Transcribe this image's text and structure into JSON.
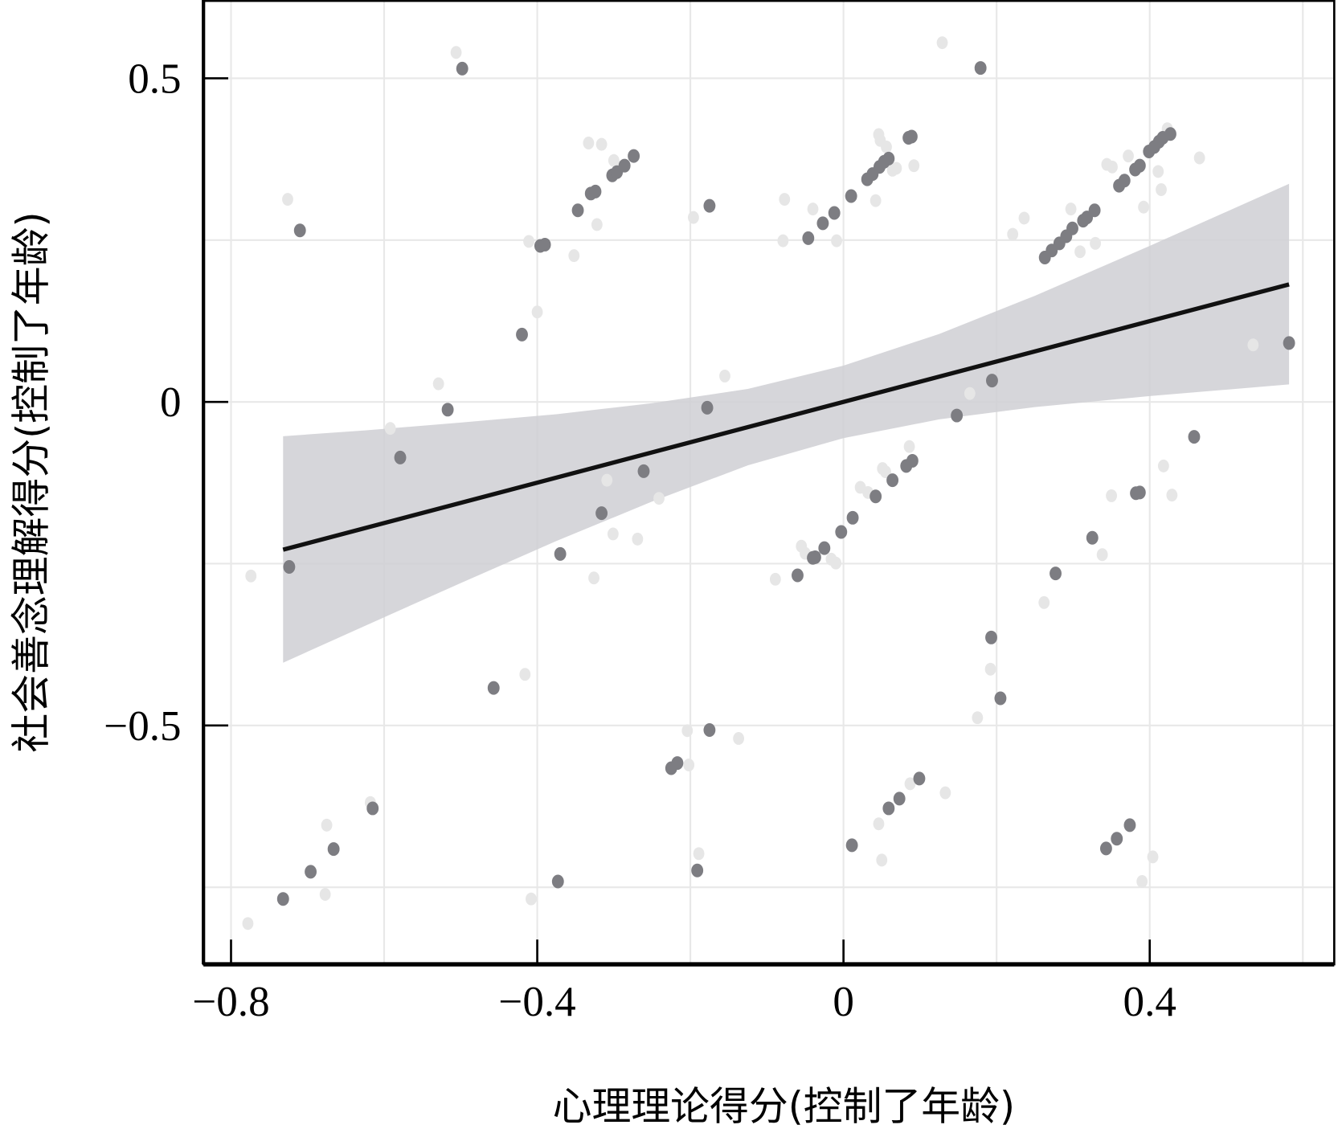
{
  "chart_data": {
    "type": "scatter",
    "title": "",
    "xlabel": "心理理论得分(控制了年龄)",
    "ylabel": "社会善念理解得分(控制了年龄)",
    "xlim": [
      -0.836,
      0.641
    ],
    "ylim": [
      -0.869,
      0.621
    ],
    "grid": true,
    "x_ticks": [
      -0.8,
      -0.4,
      0,
      0.4
    ],
    "x_tick_labels": [
      "−0.8",
      "−0.4",
      "0",
      "0.4"
    ],
    "y_ticks": [
      0.5,
      0,
      -0.5
    ],
    "y_tick_labels": [
      "0.5",
      "0",
      "−0.5"
    ],
    "x_minor_grid": [
      -0.6,
      -0.2,
      0.2,
      0.6
    ],
    "y_minor_grid": [
      0.25,
      -0.25,
      -0.75
    ],
    "colors": {
      "point": "#7d7d82",
      "point_faint": "#e6e6e6",
      "line": "#111111",
      "band": "#cfcfd3",
      "grid": "#e8e8e8"
    },
    "regression": {
      "slope": 0.312,
      "intercept": 0.0,
      "x_range": [
        -0.732,
        0.582
      ]
    },
    "confidence_band": [
      {
        "x": -0.732,
        "lower": -0.403,
        "upper": -0.053
      },
      {
        "x": -0.625,
        "lower": -0.346,
        "upper": -0.044
      },
      {
        "x": -0.5,
        "lower": -0.28,
        "upper": -0.032
      },
      {
        "x": -0.375,
        "lower": -0.215,
        "upper": -0.019
      },
      {
        "x": -0.25,
        "lower": -0.154,
        "upper": -0.002
      },
      {
        "x": -0.125,
        "lower": -0.098,
        "upper": 0.02
      },
      {
        "x": 0,
        "lower": -0.056,
        "upper": 0.056
      },
      {
        "x": 0.125,
        "lower": -0.027,
        "upper": 0.105
      },
      {
        "x": 0.25,
        "lower": -0.008,
        "upper": 0.164
      },
      {
        "x": 0.4,
        "lower": 0.009,
        "upper": 0.241
      },
      {
        "x": 0.582,
        "lower": 0.027,
        "upper": 0.337
      }
    ],
    "points": [
      [
        -0.498,
        0.515
      ],
      [
        -0.71,
        0.265
      ],
      [
        0.179,
        0.516
      ],
      [
        -0.175,
        0.303
      ],
      [
        -0.347,
        0.296
      ],
      [
        -0.33,
        0.322
      ],
      [
        -0.324,
        0.325
      ],
      [
        -0.302,
        0.35
      ],
      [
        -0.296,
        0.355
      ],
      [
        -0.286,
        0.365
      ],
      [
        -0.274,
        0.38
      ],
      [
        -0.396,
        0.241
      ],
      [
        -0.39,
        0.243
      ],
      [
        -0.42,
        0.104
      ],
      [
        -0.517,
        -0.012
      ],
      [
        -0.579,
        -0.086
      ],
      [
        -0.724,
        -0.255
      ],
      [
        -0.261,
        -0.107
      ],
      [
        -0.316,
        -0.172
      ],
      [
        -0.37,
        -0.235
      ],
      [
        -0.178,
        -0.009
      ],
      [
        -0.457,
        -0.442
      ],
      [
        -0.615,
        -0.628
      ],
      [
        -0.666,
        -0.691
      ],
      [
        -0.696,
        -0.726
      ],
      [
        -0.732,
        -0.768
      ],
      [
        -0.373,
        -0.741
      ],
      [
        -0.191,
        -0.724
      ],
      [
        -0.225,
        -0.566
      ],
      [
        -0.217,
        -0.558
      ],
      [
        -0.175,
        -0.507
      ],
      [
        -0.046,
        0.253
      ],
      [
        -0.027,
        0.276
      ],
      [
        -0.012,
        0.292
      ],
      [
        0.01,
        0.318
      ],
      [
        0.031,
        0.344
      ],
      [
        0.038,
        0.352
      ],
      [
        0.047,
        0.363
      ],
      [
        0.053,
        0.371
      ],
      [
        0.059,
        0.376
      ],
      [
        0.085,
        0.408
      ],
      [
        0.089,
        0.41
      ],
      [
        0.194,
        0.033
      ],
      [
        0.148,
        -0.021
      ],
      [
        0.458,
        -0.054
      ],
      [
        0.382,
        -0.141
      ],
      [
        0.387,
        -0.14
      ],
      [
        0.325,
        -0.21
      ],
      [
        0.277,
        -0.265
      ],
      [
        0.582,
        0.091
      ],
      [
        0.193,
        -0.364
      ],
      [
        0.205,
        -0.458
      ],
      [
        -0.06,
        -0.268
      ],
      [
        -0.04,
        -0.241
      ],
      [
        -0.037,
        -0.24
      ],
      [
        -0.025,
        -0.226
      ],
      [
        -0.003,
        -0.201
      ],
      [
        0.012,
        -0.179
      ],
      [
        0.042,
        -0.146
      ],
      [
        0.064,
        -0.121
      ],
      [
        0.082,
        -0.099
      ],
      [
        0.09,
        -0.091
      ],
      [
        0.011,
        -0.685
      ],
      [
        0.059,
        -0.628
      ],
      [
        0.073,
        -0.613
      ],
      [
        0.099,
        -0.582
      ],
      [
        0.343,
        -0.69
      ],
      [
        0.357,
        -0.675
      ],
      [
        0.374,
        -0.654
      ],
      [
        0.263,
        0.223
      ],
      [
        0.272,
        0.234
      ],
      [
        0.282,
        0.245
      ],
      [
        0.291,
        0.256
      ],
      [
        0.299,
        0.268
      ],
      [
        0.313,
        0.28
      ],
      [
        0.318,
        0.285
      ],
      [
        0.328,
        0.296
      ],
      [
        0.36,
        0.334
      ],
      [
        0.367,
        0.342
      ],
      [
        0.381,
        0.359
      ],
      [
        0.387,
        0.365
      ],
      [
        0.399,
        0.387
      ],
      [
        0.406,
        0.394
      ],
      [
        0.412,
        0.402
      ],
      [
        0.417,
        0.408
      ],
      [
        0.427,
        0.414
      ]
    ],
    "points_faint": [
      [
        -0.506,
        0.54
      ],
      [
        -0.726,
        0.313
      ],
      [
        0.129,
        0.555
      ],
      [
        -0.333,
        0.4
      ],
      [
        -0.316,
        0.398
      ],
      [
        -0.3,
        0.373
      ],
      [
        -0.293,
        0.363
      ],
      [
        -0.322,
        0.274
      ],
      [
        -0.352,
        0.226
      ],
      [
        -0.411,
        0.248
      ],
      [
        -0.4,
        0.139
      ],
      [
        -0.196,
        0.285
      ],
      [
        -0.077,
        0.313
      ],
      [
        -0.04,
        0.298
      ],
      [
        -0.079,
        0.249
      ],
      [
        -0.009,
        0.249
      ],
      [
        0.046,
        0.413
      ],
      [
        0.048,
        0.404
      ],
      [
        0.056,
        0.394
      ],
      [
        0.064,
        0.358
      ],
      [
        0.069,
        0.361
      ],
      [
        0.092,
        0.365
      ],
      [
        0.042,
        0.311
      ],
      [
        0.236,
        0.284
      ],
      [
        0.221,
        0.259
      ],
      [
        0.297,
        0.298
      ],
      [
        0.344,
        0.367
      ],
      [
        0.351,
        0.363
      ],
      [
        0.372,
        0.38
      ],
      [
        0.392,
        0.301
      ],
      [
        0.411,
        0.356
      ],
      [
        0.415,
        0.328
      ],
      [
        0.423,
        0.422
      ],
      [
        0.465,
        0.377
      ],
      [
        0.309,
        0.232
      ],
      [
        0.329,
        0.245
      ],
      [
        0.535,
        0.088
      ],
      [
        -0.155,
        0.04
      ],
      [
        0.165,
        0.013
      ],
      [
        -0.529,
        0.028
      ],
      [
        -0.592,
        -0.041
      ],
      [
        -0.309,
        -0.121
      ],
      [
        -0.241,
        -0.149
      ],
      [
        -0.301,
        -0.204
      ],
      [
        -0.269,
        -0.212
      ],
      [
        -0.326,
        -0.272
      ],
      [
        -0.774,
        -0.269
      ],
      [
        -0.089,
        -0.274
      ],
      [
        -0.055,
        -0.223
      ],
      [
        -0.05,
        -0.234
      ],
      [
        -0.016,
        -0.243
      ],
      [
        -0.01,
        -0.249
      ],
      [
        0.022,
        -0.132
      ],
      [
        0.032,
        -0.14
      ],
      [
        0.051,
        -0.103
      ],
      [
        0.055,
        -0.108
      ],
      [
        0.086,
        -0.069
      ],
      [
        0.418,
        -0.099
      ],
      [
        0.429,
        -0.144
      ],
      [
        0.35,
        -0.145
      ],
      [
        0.338,
        -0.236
      ],
      [
        0.262,
        -0.31
      ],
      [
        0.192,
        -0.413
      ],
      [
        0.175,
        -0.488
      ],
      [
        -0.416,
        -0.421
      ],
      [
        -0.204,
        -0.508
      ],
      [
        -0.137,
        -0.52
      ],
      [
        -0.202,
        -0.561
      ],
      [
        -0.618,
        -0.619
      ],
      [
        -0.675,
        -0.654
      ],
      [
        0.046,
        -0.652
      ],
      [
        0.087,
        -0.59
      ],
      [
        0.133,
        -0.604
      ],
      [
        0.05,
        -0.708
      ],
      [
        -0.189,
        -0.698
      ],
      [
        0.404,
        -0.703
      ],
      [
        0.39,
        -0.741
      ],
      [
        -0.677,
        -0.761
      ],
      [
        -0.408,
        -0.768
      ],
      [
        -0.778,
        -0.806
      ]
    ]
  }
}
